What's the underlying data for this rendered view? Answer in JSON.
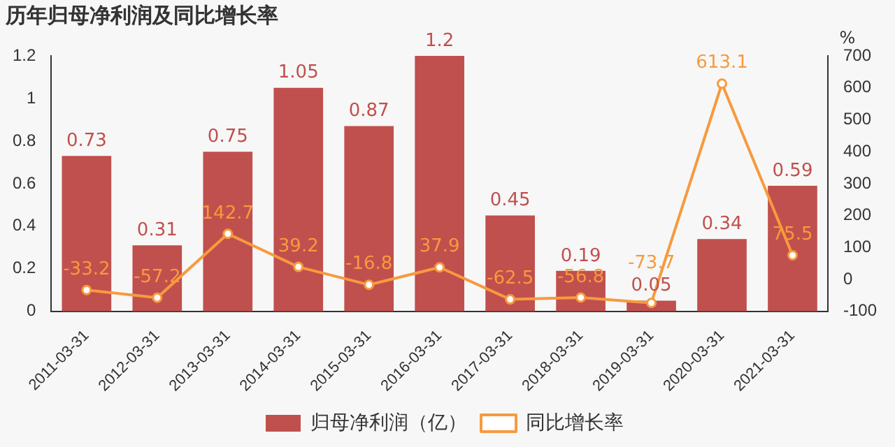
{
  "chart_data": {
    "type": "bar",
    "title": "历年归母净利润及同比增长率",
    "y2label": "%",
    "categories": [
      "2011-03-31",
      "2012-03-31",
      "2013-03-31",
      "2014-03-31",
      "2015-03-31",
      "2016-03-31",
      "2017-03-31",
      "2018-03-31",
      "2019-03-31",
      "2020-03-31",
      "2021-03-31"
    ],
    "series": [
      {
        "name": "归母净利润（亿）",
        "color": "#c0504d",
        "values": [
          0.73,
          0.31,
          0.75,
          1.05,
          0.87,
          1.2,
          0.45,
          0.19,
          0.05,
          0.34,
          0.59
        ]
      },
      {
        "name": "同比增长率",
        "type": "line",
        "axis": "y2",
        "color": "#f79a3e",
        "values": [
          -33.2,
          -57.2,
          142.7,
          39.2,
          -16.8,
          37.9,
          -62.5,
          -56.8,
          -73.7,
          613.1,
          75.5
        ]
      }
    ],
    "ylim": [
      0,
      1.2
    ],
    "yticks": [
      0,
      0.2,
      0.4,
      0.6,
      0.8,
      1,
      1.2
    ],
    "y2lim": [
      -100,
      700
    ],
    "y2ticks": [
      -100,
      0,
      100,
      200,
      300,
      400,
      500,
      600,
      700
    ],
    "data_labels": true,
    "legend": "bottom",
    "marker": "circle",
    "grid": false
  }
}
